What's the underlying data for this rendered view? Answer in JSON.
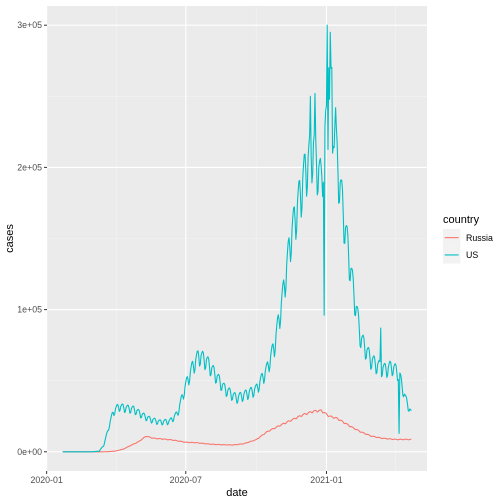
{
  "chart_data": {
    "type": "line",
    "xlabel": "date",
    "ylabel": "cases",
    "x_axis": {
      "type": "date",
      "range": [
        "2020-01-22",
        "2021-04-22"
      ],
      "ticks": [
        {
          "value": "2020-01-01",
          "label": "2020-01"
        },
        {
          "value": "2020-07-01",
          "label": "2020-07"
        },
        {
          "value": "2021-01-01",
          "label": "2021-01"
        }
      ],
      "minor_ticks": [
        "2020-04-01",
        "2020-10-01",
        "2021-04-01"
      ]
    },
    "y_axis": {
      "range": [
        0,
        300000
      ],
      "ticks": [
        {
          "value": 0,
          "label": "0e+00"
        },
        {
          "value": 100000,
          "label": "1e+05"
        },
        {
          "value": 200000,
          "label": "2e+05"
        },
        {
          "value": 300000,
          "label": "3e+05"
        }
      ]
    },
    "grid": true,
    "legend": {
      "title": "country",
      "placement": "right"
    },
    "series": [
      {
        "name": "Russia",
        "color": "#F8766D",
        "weekly_amplitude": 0.03,
        "points": [
          [
            "2020-01-22",
            0
          ],
          [
            "2020-03-10",
            0
          ],
          [
            "2020-03-20",
            50
          ],
          [
            "2020-03-31",
            500
          ],
          [
            "2020-04-10",
            1800
          ],
          [
            "2020-04-20",
            4500
          ],
          [
            "2020-04-30",
            7000
          ],
          [
            "2020-05-10",
            11000
          ],
          [
            "2020-05-20",
            9500
          ],
          [
            "2020-06-01",
            9000
          ],
          [
            "2020-06-15",
            8200
          ],
          [
            "2020-07-01",
            6700
          ],
          [
            "2020-07-15",
            6400
          ],
          [
            "2020-08-01",
            5400
          ],
          [
            "2020-08-15",
            5000
          ],
          [
            "2020-09-01",
            4800
          ],
          [
            "2020-09-15",
            5700
          ],
          [
            "2020-10-01",
            8500
          ],
          [
            "2020-10-15",
            14000
          ],
          [
            "2020-11-01",
            18500
          ],
          [
            "2020-11-15",
            22000
          ],
          [
            "2020-12-01",
            26000
          ],
          [
            "2020-12-15",
            28500
          ],
          [
            "2020-12-25",
            29000
          ],
          [
            "2021-01-05",
            25000
          ],
          [
            "2021-01-15",
            23500
          ],
          [
            "2021-02-01",
            18000
          ],
          [
            "2021-02-15",
            14000
          ],
          [
            "2021-03-01",
            11000
          ],
          [
            "2021-03-15",
            9500
          ],
          [
            "2021-04-01",
            8700
          ],
          [
            "2021-04-22",
            8700
          ]
        ]
      },
      {
        "name": "US",
        "color": "#00BFC4",
        "weekly_amplitude": 0.12,
        "points": [
          [
            "2020-01-22",
            0
          ],
          [
            "2020-03-01",
            0
          ],
          [
            "2020-03-10",
            500
          ],
          [
            "2020-03-16",
            5000
          ],
          [
            "2020-03-22",
            17000
          ],
          [
            "2020-03-28",
            28000
          ],
          [
            "2020-04-04",
            32000
          ],
          [
            "2020-04-12",
            31000
          ],
          [
            "2020-04-24",
            30000
          ],
          [
            "2020-05-05",
            26000
          ],
          [
            "2020-05-15",
            23000
          ],
          [
            "2020-05-28",
            21000
          ],
          [
            "2020-06-10",
            21500
          ],
          [
            "2020-06-20",
            27000
          ],
          [
            "2020-07-01",
            47000
          ],
          [
            "2020-07-10",
            60000
          ],
          [
            "2020-07-18",
            68000
          ],
          [
            "2020-07-28",
            64000
          ],
          [
            "2020-08-08",
            55000
          ],
          [
            "2020-08-20",
            45000
          ],
          [
            "2020-09-05",
            38000
          ],
          [
            "2020-09-15",
            40000
          ],
          [
            "2020-10-01",
            44000
          ],
          [
            "2020-10-15",
            58000
          ],
          [
            "2020-10-25",
            75000
          ],
          [
            "2020-11-05",
            110000
          ],
          [
            "2020-11-15",
            150000
          ],
          [
            "2020-11-25",
            175000
          ],
          [
            "2020-12-05",
            200000
          ],
          [
            "2020-12-15",
            215000
          ],
          [
            "2020-12-25",
            190000
          ],
          [
            "2021-01-02",
            235000
          ],
          [
            "2021-01-08",
            255000
          ],
          [
            "2021-01-15",
            205000
          ],
          [
            "2021-01-25",
            160000
          ],
          [
            "2021-02-05",
            115000
          ],
          [
            "2021-02-15",
            80000
          ],
          [
            "2021-02-28",
            65000
          ],
          [
            "2021-03-08",
            61000
          ],
          [
            "2021-03-18",
            58000
          ],
          [
            "2021-03-28",
            60000
          ],
          [
            "2021-04-06",
            55000
          ],
          [
            "2021-04-14",
            38000
          ],
          [
            "2021-04-22",
            27000
          ]
        ],
        "spikes": [
          [
            "2020-12-11",
            250000
          ],
          [
            "2020-12-17",
            252000
          ],
          [
            "2020-12-29",
            96000
          ],
          [
            "2021-01-02",
            300000
          ],
          [
            "2021-01-04",
            270000
          ],
          [
            "2021-01-06",
            295000
          ],
          [
            "2021-01-09",
            210000
          ],
          [
            "2021-01-13",
            242000
          ],
          [
            "2021-03-13",
            87000
          ],
          [
            "2021-04-06",
            13000
          ]
        ]
      }
    ]
  }
}
